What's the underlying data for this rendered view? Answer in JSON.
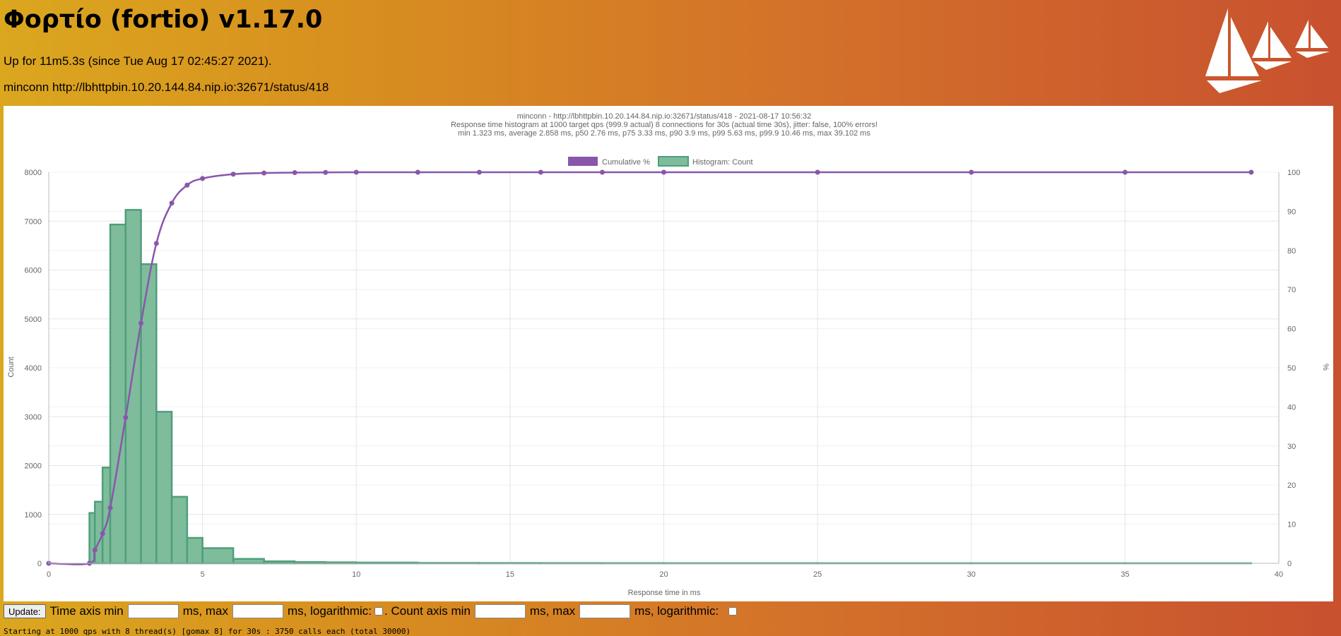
{
  "header": {
    "title": "Φορτίο (fortio) v1.17.0",
    "uptime": "Up for 11m5.3s (since Tue Aug 17 02:45:27 2021).",
    "run_label": "minconn http://lbhttpbin.10.20.144.84.nip.io:32671/status/418"
  },
  "colors": {
    "cumulative": "#8957a9",
    "histogram_fill": "#7ebc9c",
    "histogram_stroke": "#4f9e7a",
    "grid": "#e5e5e5",
    "axis_text": "#666666"
  },
  "chart_data": {
    "type": "bar",
    "title_lines": [
      "minconn - http://lbhttpbin.10.20.144.84.nip.io:32671/status/418 - 2021-08-17 10:56:32",
      "Response time histogram at 1000 target qps (999.9 actual) 8 connections for 30s (actual time 30s), jitter: false, 100% errors!",
      "min 1.323 ms, average 2.858 ms, p50 2.76 ms, p75 3.33 ms, p90 3.9 ms, p99 5.63 ms, p99.9 10.46 ms, max 39.102 ms"
    ],
    "legend": [
      "Cumulative %",
      "Histogram: Count"
    ],
    "legend_position": "top",
    "xlabel": "Response time in ms",
    "ylabel": "Count",
    "y2label": "%",
    "xlim": [
      0,
      40
    ],
    "ylim": [
      0,
      8000
    ],
    "y2lim": [
      0,
      100
    ],
    "x_ticks": [
      0,
      5,
      10,
      15,
      20,
      25,
      30,
      35,
      40
    ],
    "y_ticks": [
      0,
      1000,
      2000,
      3000,
      4000,
      5000,
      6000,
      7000,
      8000
    ],
    "y2_ticks": [
      0,
      10,
      20,
      30,
      40,
      50,
      60,
      70,
      80,
      90,
      100
    ],
    "grid": true,
    "histogram": [
      {
        "start": 1.323,
        "end": 1.5,
        "count": 1030
      },
      {
        "start": 1.5,
        "end": 1.75,
        "count": 1260
      },
      {
        "start": 1.75,
        "end": 2,
        "count": 1960
      },
      {
        "start": 2,
        "end": 2.5,
        "count": 6930
      },
      {
        "start": 2.5,
        "end": 3,
        "count": 7230
      },
      {
        "start": 3,
        "end": 3.5,
        "count": 6120
      },
      {
        "start": 3.5,
        "end": 4,
        "count": 3100
      },
      {
        "start": 4,
        "end": 4.5,
        "count": 1360
      },
      {
        "start": 4.5,
        "end": 5,
        "count": 520
      },
      {
        "start": 5,
        "end": 6,
        "count": 310
      },
      {
        "start": 6,
        "end": 7,
        "count": 90
      },
      {
        "start": 7,
        "end": 8,
        "count": 40
      },
      {
        "start": 8,
        "end": 9,
        "count": 25
      },
      {
        "start": 9,
        "end": 10,
        "count": 20
      },
      {
        "start": 10,
        "end": 12,
        "count": 15
      },
      {
        "start": 12,
        "end": 14,
        "count": 8
      },
      {
        "start": 14,
        "end": 16,
        "count": 6
      },
      {
        "start": 16,
        "end": 18,
        "count": 5
      },
      {
        "start": 18,
        "end": 20,
        "count": 4
      },
      {
        "start": 20,
        "end": 25,
        "count": 3
      },
      {
        "start": 25,
        "end": 30,
        "count": 2
      },
      {
        "start": 30,
        "end": 35,
        "count": 2
      },
      {
        "start": 35,
        "end": 39.102,
        "count": 1
      }
    ],
    "cumulative": [
      {
        "x": 0,
        "y": 0
      },
      {
        "x": 1.323,
        "y": 0
      },
      {
        "x": 1.5,
        "y": 3.4
      },
      {
        "x": 1.75,
        "y": 7.6
      },
      {
        "x": 2,
        "y": 14.2
      },
      {
        "x": 2.5,
        "y": 37.3
      },
      {
        "x": 3,
        "y": 61.4
      },
      {
        "x": 3.5,
        "y": 81.8
      },
      {
        "x": 4,
        "y": 92.1
      },
      {
        "x": 4.5,
        "y": 96.7
      },
      {
        "x": 5,
        "y": 98.4
      },
      {
        "x": 6,
        "y": 99.5
      },
      {
        "x": 7,
        "y": 99.8
      },
      {
        "x": 8,
        "y": 99.9
      },
      {
        "x": 9,
        "y": 99.95
      },
      {
        "x": 10,
        "y": 100
      },
      {
        "x": 12,
        "y": 100
      },
      {
        "x": 14,
        "y": 100
      },
      {
        "x": 16,
        "y": 100
      },
      {
        "x": 18,
        "y": 100
      },
      {
        "x": 20,
        "y": 100
      },
      {
        "x": 25,
        "y": 100
      },
      {
        "x": 30,
        "y": 100
      },
      {
        "x": 35,
        "y": 100
      },
      {
        "x": 39.102,
        "y": 100
      }
    ]
  },
  "controls": {
    "update_label": "Update:",
    "time_axis_min_label": "Time axis min",
    "ms_max_label_1": "ms, max",
    "ms_log_label_1": "ms, logarithmic:",
    "count_axis_min_label": ". Count axis min",
    "ms_max_label_2": "ms, max",
    "ms_log_label_2": "ms, logarithmic:",
    "time_min_value": "",
    "time_max_value": "",
    "count_min_value": "",
    "count_max_value": ""
  },
  "log_line": "Starting at 1000 qps with 8 thread(s) [gomax 8] for 30s : 3750 calls each (total 30000)"
}
